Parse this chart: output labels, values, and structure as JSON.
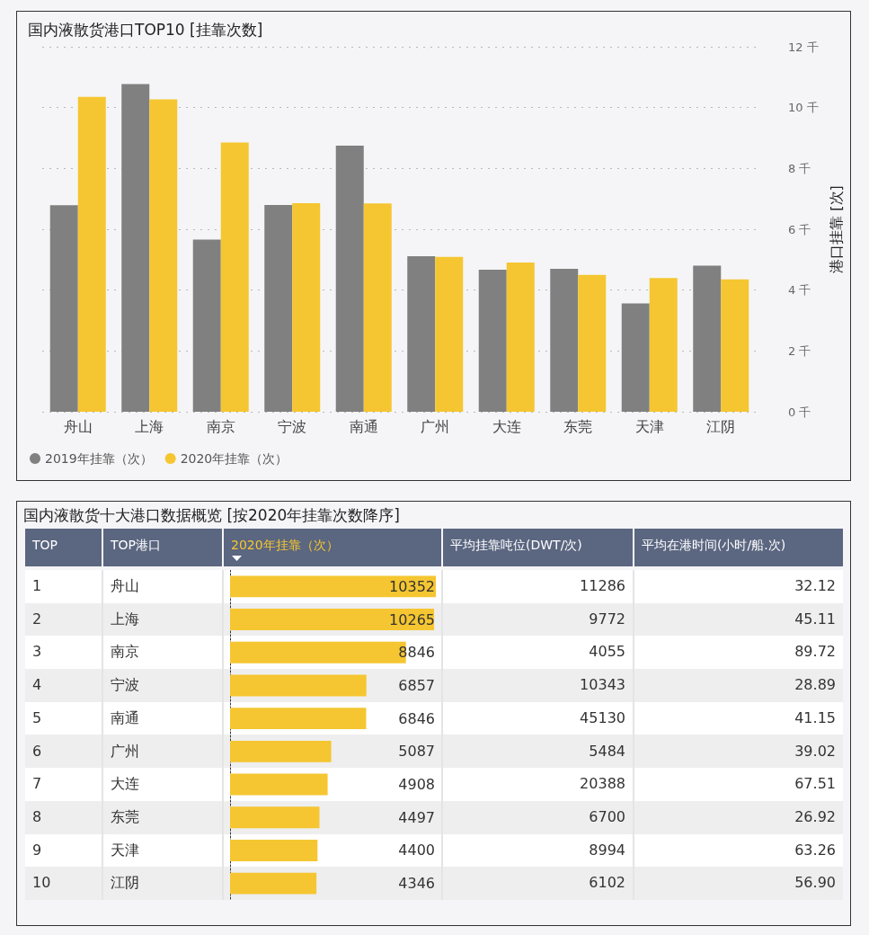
{
  "chart_data": [
    {
      "type": "bar",
      "title": "国内液散货港口TOP10 [挂靠次数]",
      "ylabel": "港口挂靠 [次]",
      "categories": [
        "舟山",
        "上海",
        "南京",
        "宁波",
        "南通",
        "广州",
        "大连",
        "东莞",
        "天津",
        "江阴"
      ],
      "series": [
        {
          "name": "2019年挂靠（次）",
          "color": "#808080",
          "values": [
            6.79,
            10.77,
            5.66,
            6.8,
            8.75,
            5.11,
            4.67,
            4.7,
            3.56,
            4.8
          ]
        },
        {
          "name": "2020年挂靠（次）",
          "color": "#f5c631",
          "values": [
            10.35,
            10.27,
            8.85,
            6.86,
            6.85,
            5.09,
            4.91,
            4.5,
            4.4,
            4.35
          ]
        }
      ],
      "ylim": [
        0,
        12
      ],
      "yticks": [
        {
          "value": 0,
          "label": "0 千"
        },
        {
          "value": 2,
          "label": "2 千"
        },
        {
          "value": 4,
          "label": "4 千"
        },
        {
          "value": 6,
          "label": "6 千"
        },
        {
          "value": 8,
          "label": "8 千"
        },
        {
          "value": 10,
          "label": "10 千"
        },
        {
          "value": 12,
          "label": "12 千"
        }
      ],
      "grid": "y",
      "legend": "bottom left"
    },
    {
      "type": "other",
      "title": "国内液散货十大港口数据概览 [按2020年挂靠次数降序]",
      "ylabel": "TOP港口",
      "categories": [
        "舟山",
        "上海",
        "南京",
        "宁波",
        "南通",
        "广州",
        "大连",
        "东莞",
        "天津",
        "江阴"
      ],
      "series": [
        {
          "name": "TOP",
          "values": [
            1,
            2,
            3,
            4,
            5,
            6,
            7,
            8,
            9,
            10
          ],
          "value_labels": [
            "1",
            "2",
            "3",
            "4",
            "5",
            "6",
            "7",
            "8",
            "9",
            "10"
          ]
        },
        {
          "name": "2020年挂靠（次）",
          "type": "bar",
          "color": "#f5c631",
          "values": [
            10352,
            10265,
            8846,
            6857,
            6846,
            5087,
            4908,
            4497,
            4400,
            4346
          ]
        },
        {
          "name": "平均挂靠吨位(DWT/次)",
          "values": [
            11286,
            9772,
            4055,
            10343,
            45130,
            5484,
            20388,
            6700,
            8994,
            6102
          ],
          "value_labels": [
            "11286",
            "9772",
            "4055",
            "10343",
            "45130",
            "5484",
            "20388",
            "6700",
            "8994",
            "6102"
          ]
        },
        {
          "name": "平均在港时间(小时/船.次)",
          "values": [
            32.12,
            45.11,
            89.72,
            28.89,
            41.15,
            39.02,
            67.51,
            26.92,
            63.26,
            56.9
          ],
          "value_labels": [
            "32.12",
            "45.11",
            "89.72",
            "28.89",
            "41.15",
            "39.02",
            "67.51",
            "26.92",
            "63.26",
            "56.90"
          ]
        }
      ],
      "data_labels": true
    }
  ]
}
